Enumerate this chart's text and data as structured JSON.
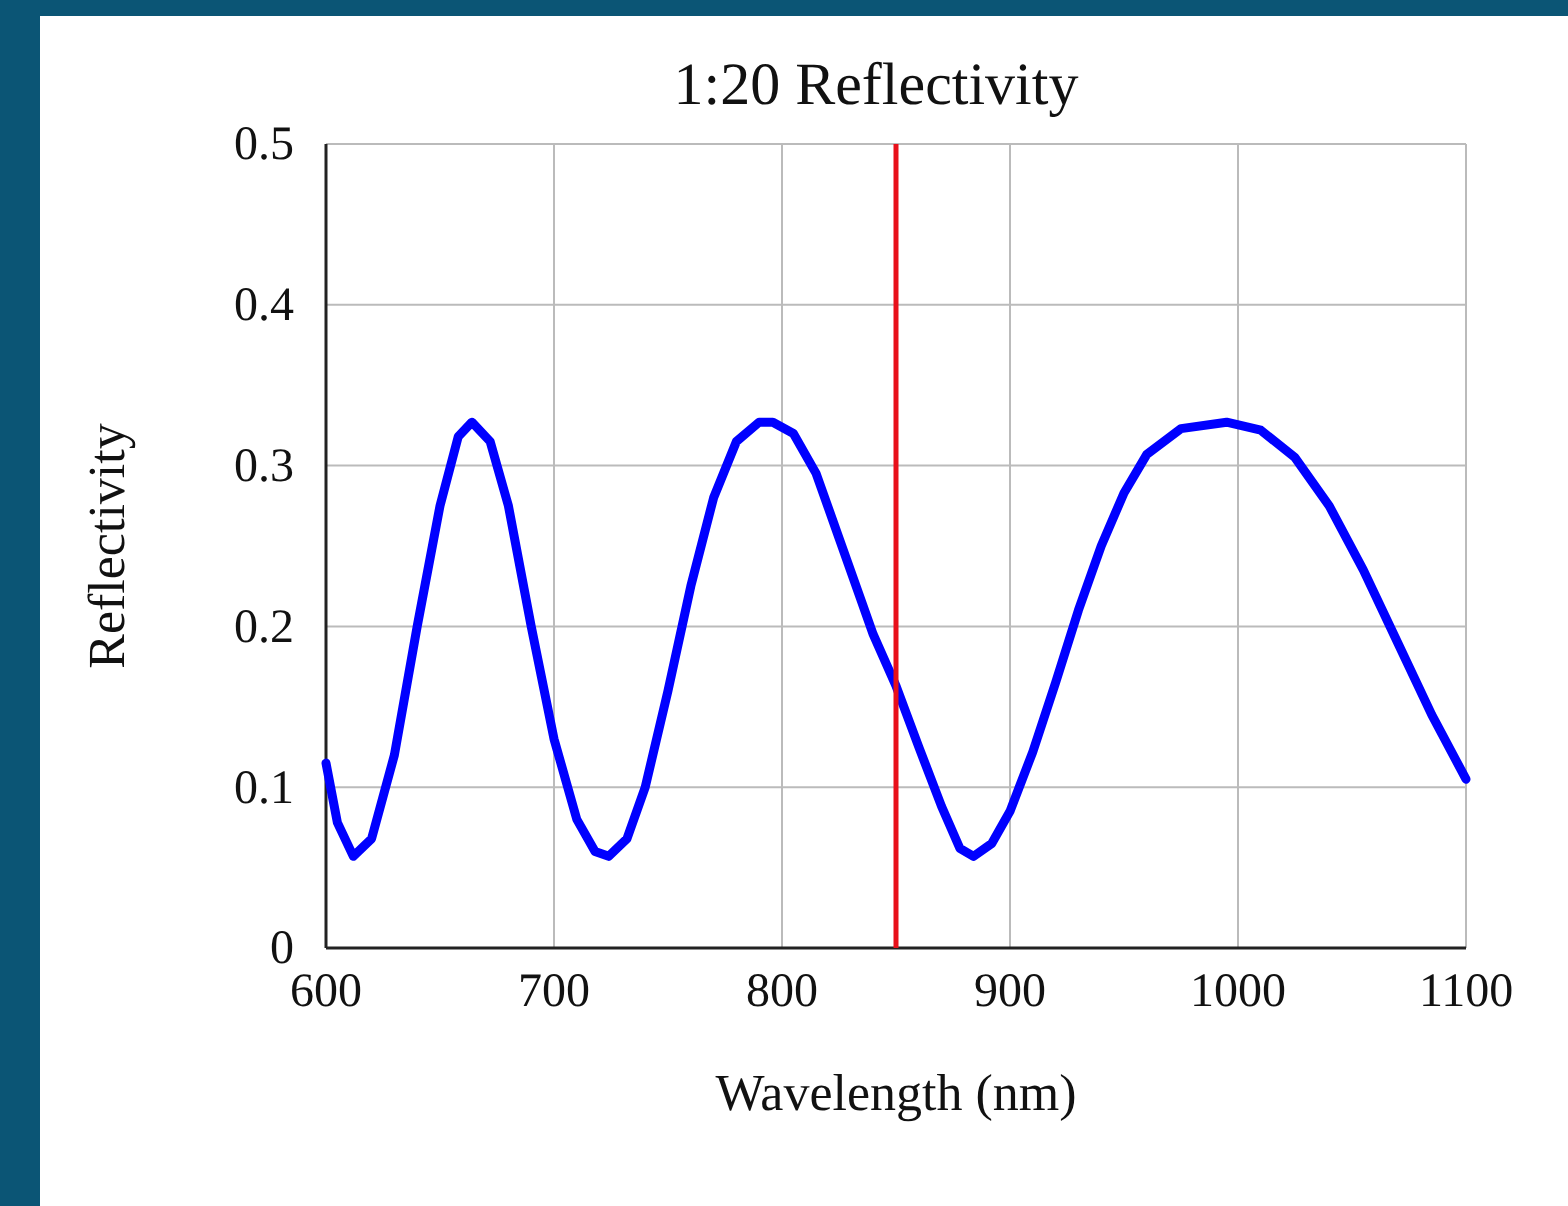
{
  "chart_data": {
    "type": "line",
    "title": "1:20 Reflectivity",
    "xlabel": "Wavelength (nm)",
    "ylabel": "Reflectivity",
    "xlim": [
      600,
      1100
    ],
    "xticks": [
      600,
      700,
      800,
      900,
      1000,
      1100
    ],
    "ylim": [
      0,
      0.5
    ],
    "yticks": [
      0,
      0.1,
      0.2,
      0.3,
      0.4,
      0.5
    ],
    "grid": true,
    "ref_lines": [
      {
        "axis": "x",
        "value": 850,
        "color": "#e8101a"
      }
    ],
    "series": [
      {
        "color": "#0000ff",
        "x": [
          600,
          605,
          612,
          620,
          630,
          640,
          650,
          658,
          664,
          672,
          680,
          690,
          700,
          710,
          718,
          724,
          732,
          740,
          750,
          760,
          770,
          780,
          790,
          796,
          805,
          815,
          825,
          835,
          840,
          850,
          860,
          870,
          878,
          884,
          892,
          900,
          910,
          920,
          930,
          940,
          950,
          960,
          975,
          995,
          1010,
          1025,
          1040,
          1055,
          1070,
          1085,
          1100
        ],
        "values": [
          0.115,
          0.078,
          0.057,
          0.068,
          0.12,
          0.2,
          0.275,
          0.318,
          0.327,
          0.315,
          0.275,
          0.2,
          0.13,
          0.08,
          0.06,
          0.057,
          0.068,
          0.1,
          0.16,
          0.225,
          0.28,
          0.315,
          0.327,
          0.327,
          0.32,
          0.295,
          0.255,
          0.215,
          0.195,
          0.163,
          0.125,
          0.088,
          0.062,
          0.057,
          0.065,
          0.085,
          0.122,
          0.165,
          0.21,
          0.25,
          0.283,
          0.307,
          0.323,
          0.327,
          0.322,
          0.305,
          0.275,
          0.235,
          0.19,
          0.145,
          0.105
        ]
      }
    ]
  }
}
